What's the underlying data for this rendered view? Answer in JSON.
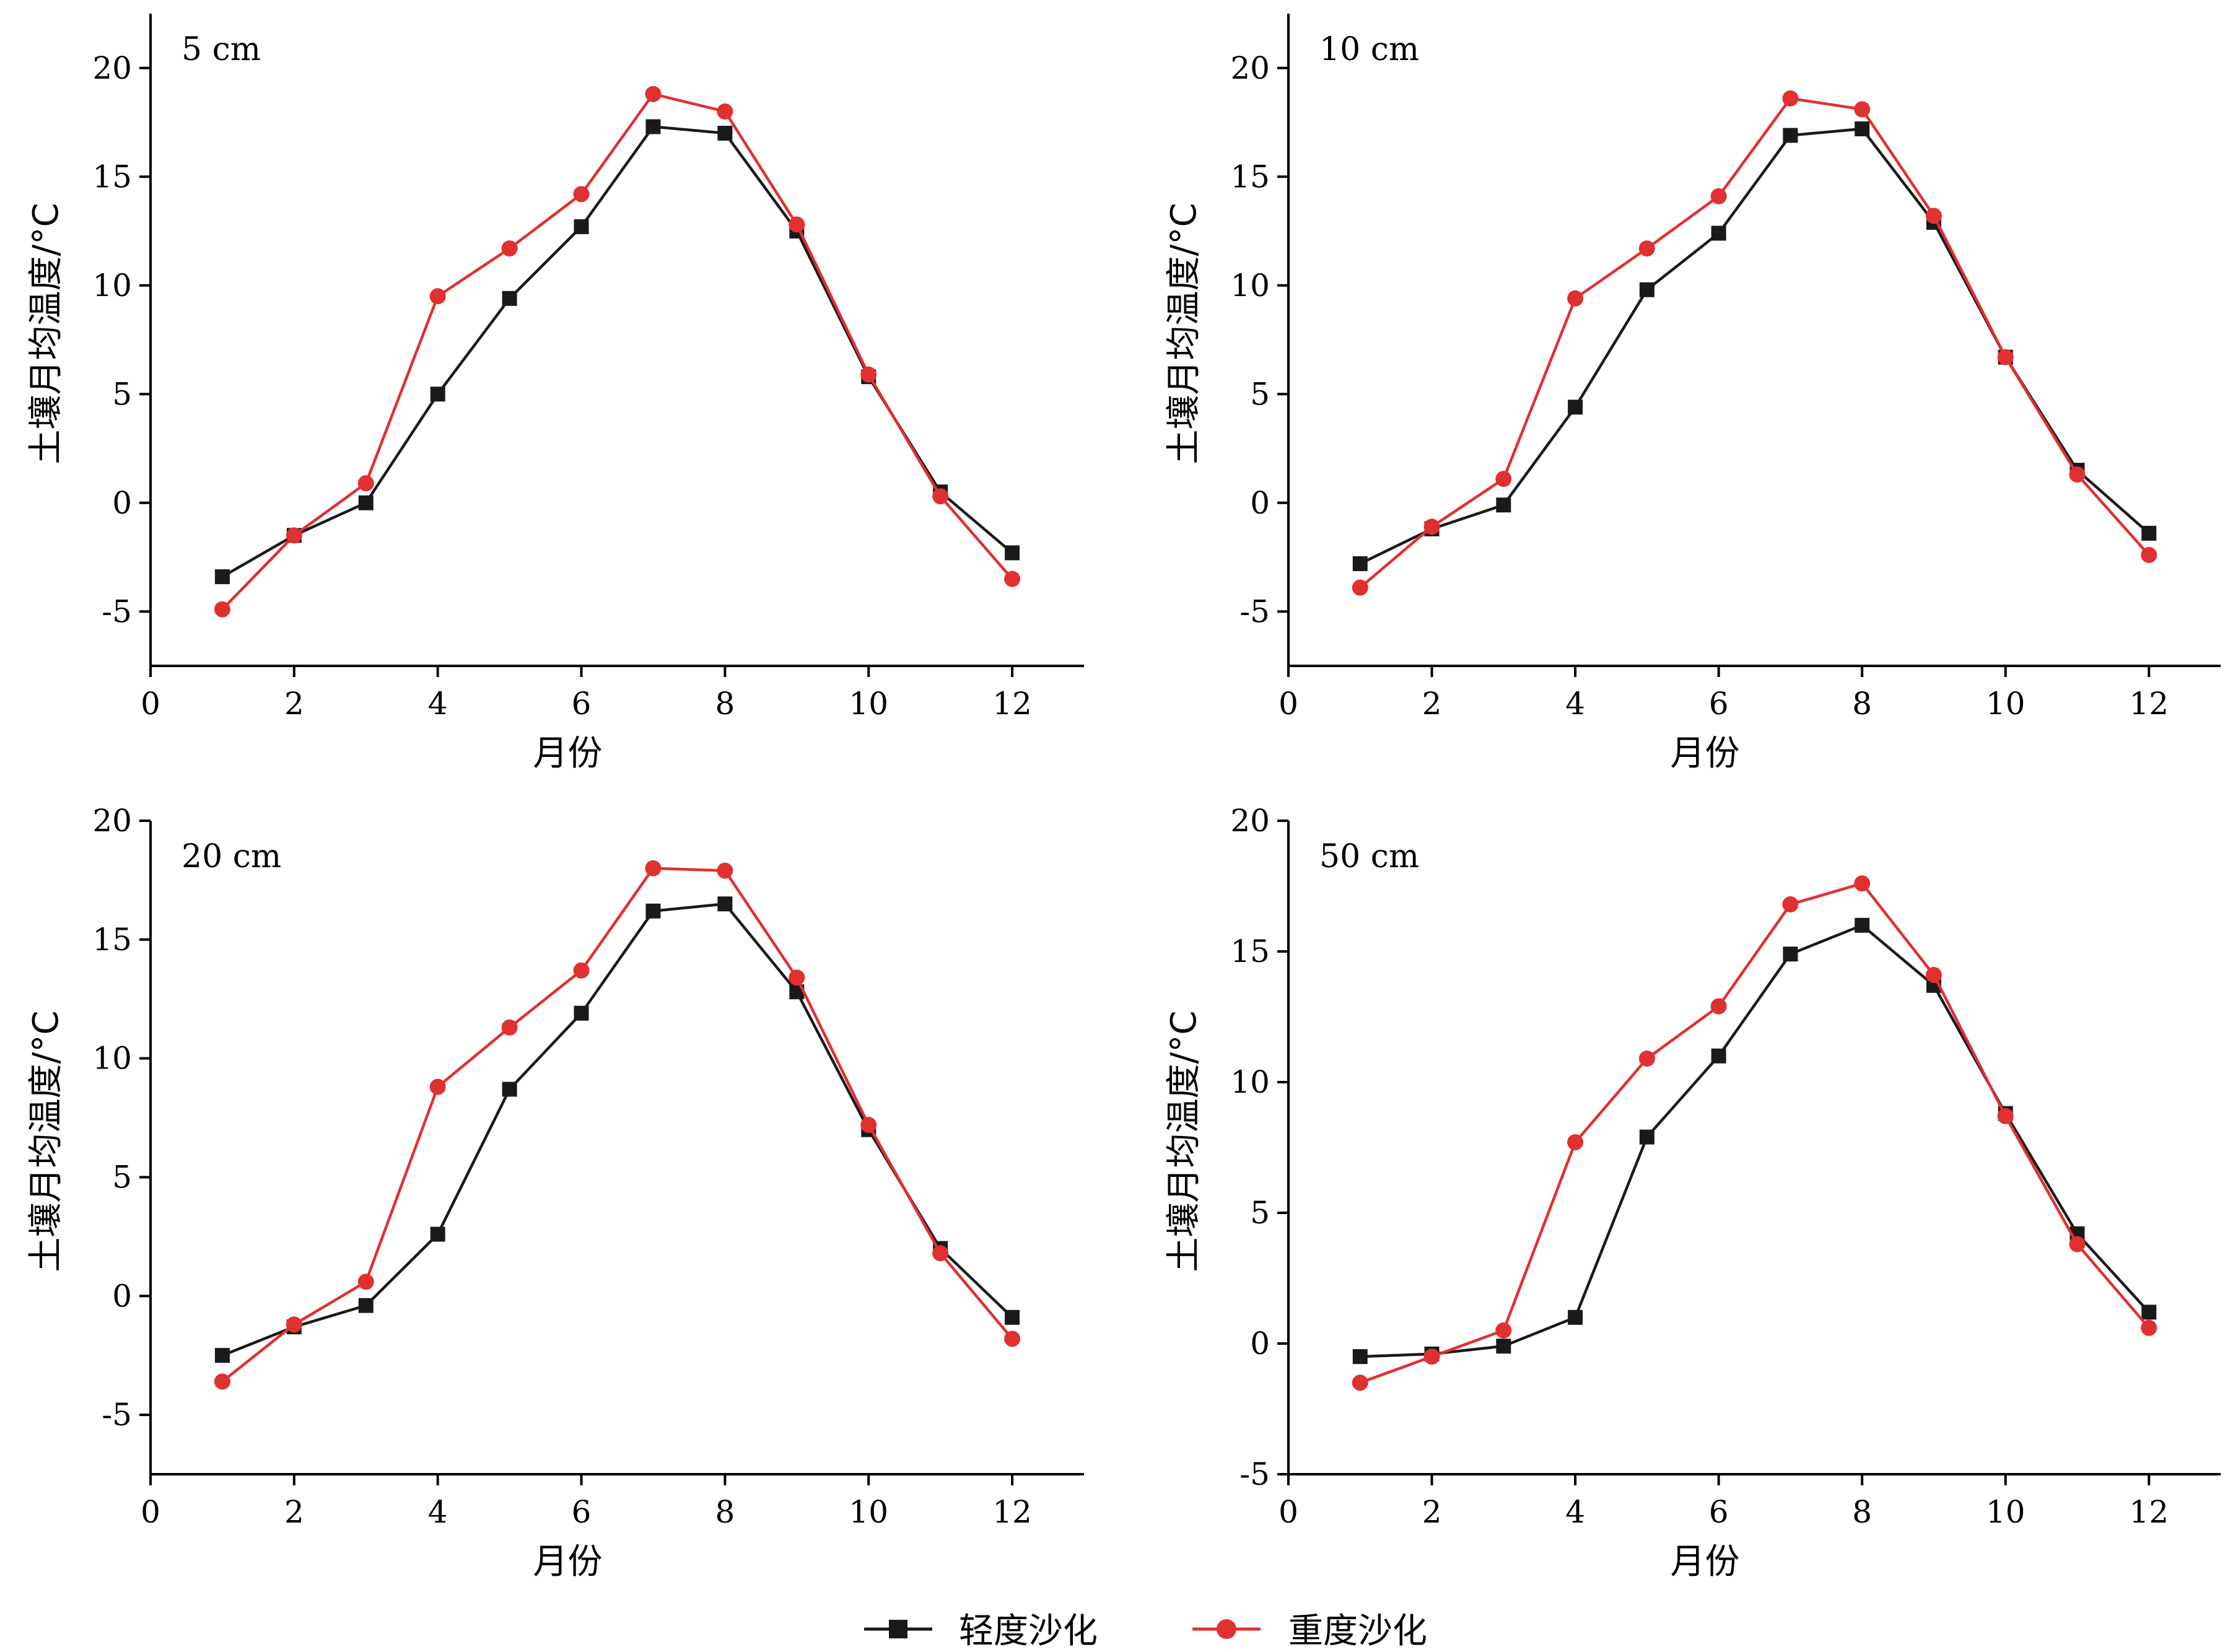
{
  "legend": {
    "items": [
      {
        "label": "轻度沙化",
        "color": "#1a1a1a",
        "marker": "square"
      },
      {
        "label": "重度沙化",
        "color": "#e03030",
        "marker": "circle"
      }
    ]
  },
  "chart_data": [
    {
      "type": "line",
      "title": "5 cm",
      "xlabel": "月份",
      "ylabel": "土壤月均温度/°C",
      "xlim": [
        0,
        13
      ],
      "ylim": [
        -7.5,
        22.5
      ],
      "xticks": [
        0,
        2,
        4,
        6,
        8,
        10,
        12
      ],
      "yticks": [
        -5,
        0,
        5,
        10,
        15,
        20
      ],
      "x": [
        1,
        2,
        3,
        4,
        5,
        6,
        7,
        8,
        9,
        10,
        11,
        12
      ],
      "series": [
        {
          "name": "轻度沙化",
          "values": [
            -3.4,
            -1.5,
            0.0,
            5.0,
            9.4,
            12.7,
            17.3,
            17.0,
            12.5,
            5.8,
            0.5,
            -2.3
          ]
        },
        {
          "name": "重度沙化",
          "values": [
            -4.9,
            -1.5,
            0.9,
            9.5,
            11.7,
            14.2,
            18.8,
            18.0,
            12.8,
            5.9,
            0.3,
            -3.5
          ]
        }
      ]
    },
    {
      "type": "line",
      "title": "10 cm",
      "xlabel": "月份",
      "ylabel": "土壤月均温度/°C",
      "xlim": [
        0,
        13
      ],
      "ylim": [
        -7.5,
        22.5
      ],
      "xticks": [
        0,
        2,
        4,
        6,
        8,
        10,
        12
      ],
      "yticks": [
        -5,
        0,
        5,
        10,
        15,
        20
      ],
      "x": [
        1,
        2,
        3,
        4,
        5,
        6,
        7,
        8,
        9,
        10,
        11,
        12
      ],
      "series": [
        {
          "name": "轻度沙化",
          "values": [
            -2.8,
            -1.2,
            -0.1,
            4.4,
            9.8,
            12.4,
            16.9,
            17.2,
            12.9,
            6.7,
            1.5,
            -1.4
          ]
        },
        {
          "name": "重度沙化",
          "values": [
            -3.9,
            -1.1,
            1.1,
            9.4,
            11.7,
            14.1,
            18.6,
            18.1,
            13.2,
            6.7,
            1.3,
            -2.4
          ]
        }
      ]
    },
    {
      "type": "line",
      "title": "20 cm",
      "xlabel": "月份",
      "ylabel": "土壤月均温度/°C",
      "xlim": [
        0,
        13
      ],
      "ylim": [
        -7.5,
        20
      ],
      "xticks": [
        0,
        2,
        4,
        6,
        8,
        10,
        12
      ],
      "yticks": [
        -5,
        0,
        5,
        10,
        15,
        20
      ],
      "x": [
        1,
        2,
        3,
        4,
        5,
        6,
        7,
        8,
        9,
        10,
        11,
        12
      ],
      "series": [
        {
          "name": "轻度沙化",
          "values": [
            -2.5,
            -1.3,
            -0.4,
            2.6,
            8.7,
            11.9,
            16.2,
            16.5,
            12.8,
            7.0,
            2.0,
            -0.9
          ]
        },
        {
          "name": "重度沙化",
          "values": [
            -3.6,
            -1.2,
            0.6,
            8.8,
            11.3,
            13.7,
            18.0,
            17.9,
            13.4,
            7.2,
            1.8,
            -1.8
          ]
        }
      ]
    },
    {
      "type": "line",
      "title": "50 cm",
      "xlabel": "月份",
      "ylabel": "土壤月均温度/°C",
      "xlim": [
        0,
        13
      ],
      "ylim": [
        -5,
        20
      ],
      "xticks": [
        0,
        2,
        4,
        6,
        8,
        10,
        12
      ],
      "yticks": [
        -5,
        0,
        5,
        10,
        15,
        20
      ],
      "x": [
        1,
        2,
        3,
        4,
        5,
        6,
        7,
        8,
        9,
        10,
        11,
        12
      ],
      "series": [
        {
          "name": "轻度沙化",
          "values": [
            -0.5,
            -0.4,
            -0.1,
            1.0,
            7.9,
            11.0,
            14.9,
            16.0,
            13.7,
            8.8,
            4.2,
            1.2
          ]
        },
        {
          "name": "重度沙化",
          "values": [
            -1.5,
            -0.5,
            0.5,
            7.7,
            10.9,
            12.9,
            16.8,
            17.6,
            14.1,
            8.7,
            3.8,
            0.6
          ]
        }
      ]
    }
  ]
}
